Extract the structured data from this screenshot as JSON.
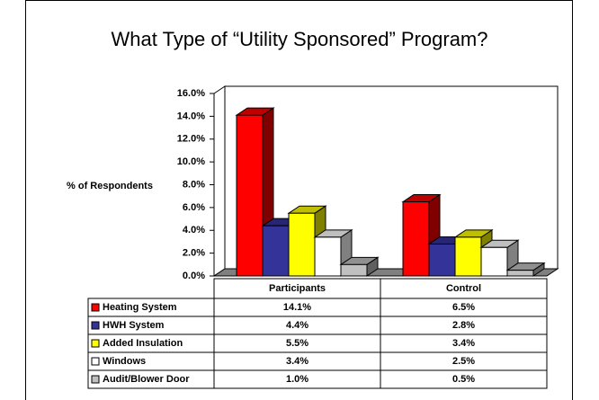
{
  "chart_data": {
    "type": "bar3d",
    "title": "What Type of “Utility Sponsored” Program?",
    "y_label": "% of Respondents",
    "categories": [
      "Participants",
      "Control"
    ],
    "series": [
      {
        "name": "Heating System",
        "color": "#ff0000",
        "values": [
          14.1,
          6.5
        ],
        "value_labels": [
          "14.1%",
          "6.5%"
        ]
      },
      {
        "name": "HWH System",
        "color": "#333399",
        "values": [
          4.4,
          2.8
        ],
        "value_labels": [
          "4.4%",
          "2.8%"
        ]
      },
      {
        "name": "Added Insulation",
        "color": "#ffff00",
        "values": [
          5.5,
          3.4
        ],
        "value_labels": [
          "5.5%",
          "3.4%"
        ]
      },
      {
        "name": "Windows",
        "color": "#ffffff",
        "values": [
          3.4,
          2.5
        ],
        "value_labels": [
          "3.4%",
          "2.5%"
        ]
      },
      {
        "name": "Audit/Blower Door",
        "color": "#c0c0c0",
        "values": [
          1.0,
          0.5
        ],
        "value_labels": [
          "1.0%",
          "0.5%"
        ]
      }
    ],
    "ylim": [
      0,
      16
    ],
    "yticks": [
      {
        "value": 0,
        "label": "0.0%"
      },
      {
        "value": 2,
        "label": "2.0%"
      },
      {
        "value": 4,
        "label": "4.0%"
      },
      {
        "value": 6,
        "label": "6.0%"
      },
      {
        "value": 8,
        "label": "8.0%"
      },
      {
        "value": 10,
        "label": "10.0%"
      },
      {
        "value": 12,
        "label": "12.0%"
      },
      {
        "value": 14,
        "label": "14.0%"
      },
      {
        "value": 16,
        "label": "16.0%"
      }
    ],
    "legend": "table"
  }
}
